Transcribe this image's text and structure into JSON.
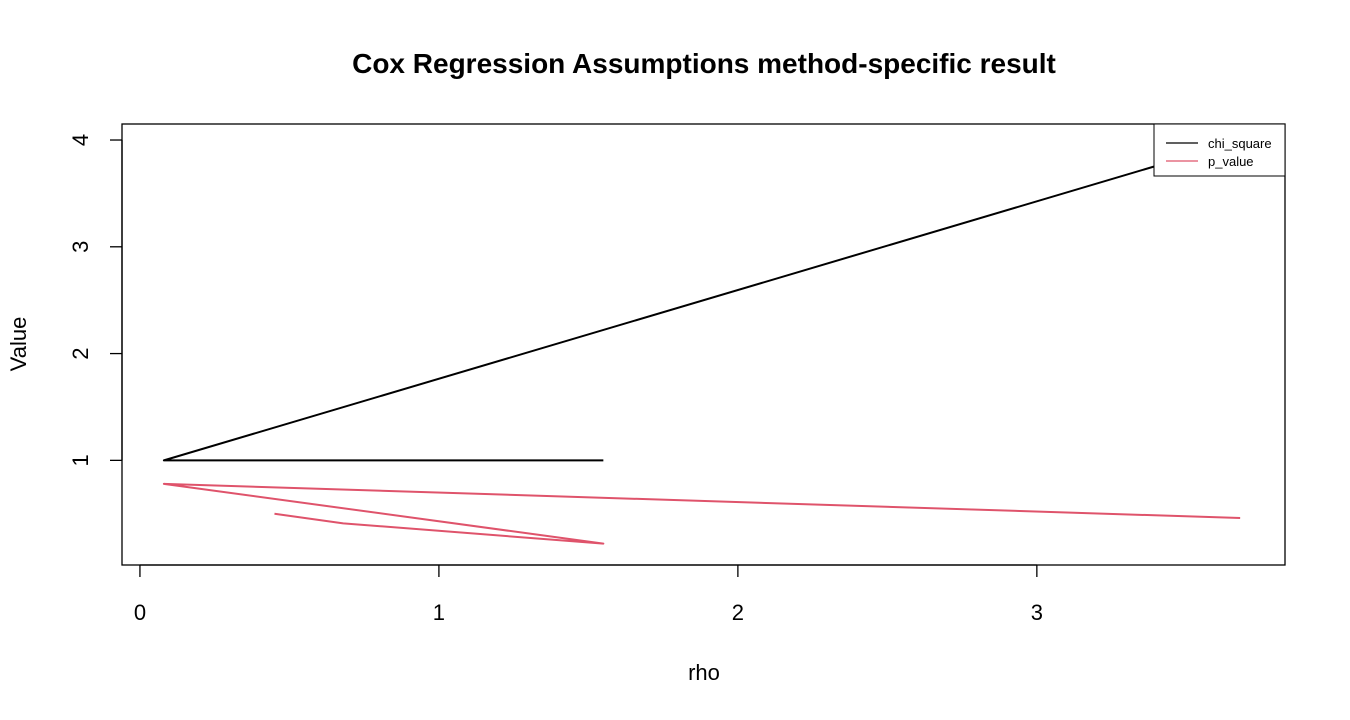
{
  "chart_data": {
    "type": "line",
    "title": "Cox Regression Assumptions method-specific result",
    "xlabel": "rho",
    "ylabel": "Value",
    "xlim": [
      -0.06,
      3.83
    ],
    "ylim": [
      0.02,
      4.15
    ],
    "x_ticks": [
      0,
      1,
      2,
      3
    ],
    "y_ticks": [
      1,
      2,
      3,
      4
    ],
    "legend_position": "top-right",
    "series": [
      {
        "name": "chi_square",
        "color": "#000000",
        "points": [
          [
            1.55,
            1.0
          ],
          [
            0.08,
            1.0
          ],
          [
            3.45,
            3.8
          ]
        ]
      },
      {
        "name": "p_value",
        "color": "#DF536B",
        "points": [
          [
            3.68,
            0.46
          ],
          [
            0.08,
            0.78
          ],
          [
            1.55,
            0.22
          ],
          [
            0.68,
            0.41
          ],
          [
            0.45,
            0.5
          ]
        ]
      }
    ]
  }
}
